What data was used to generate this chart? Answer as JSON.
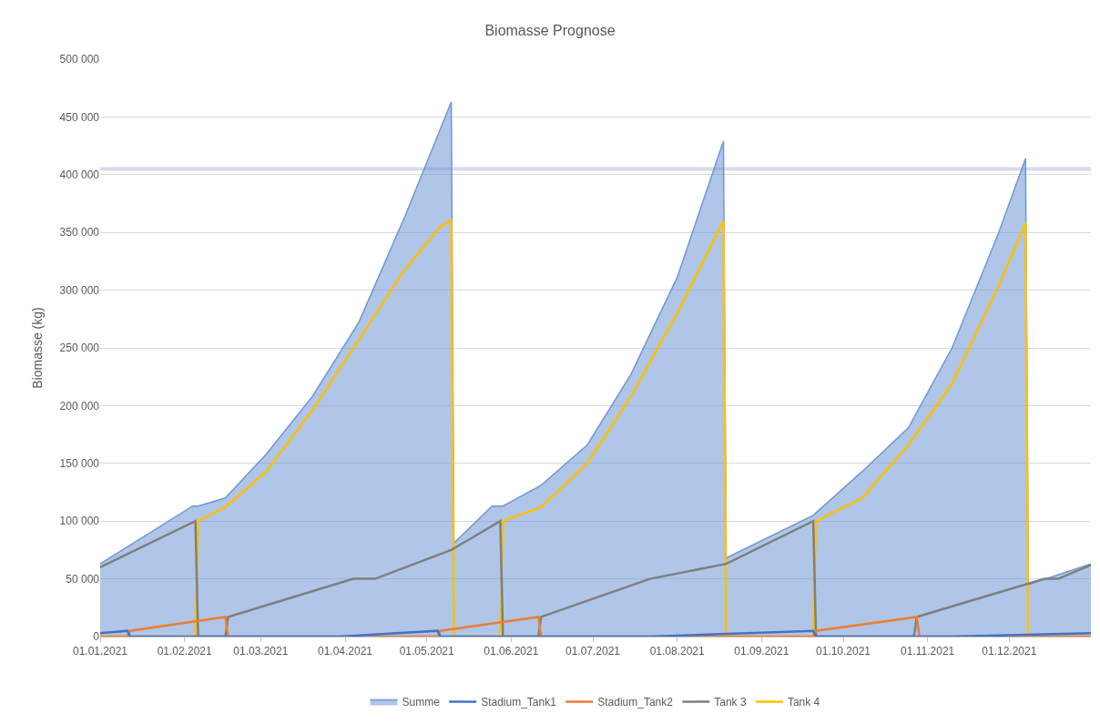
{
  "chart_data": {
    "type": "line",
    "title": "Biomasse Prognose",
    "ylabel": "Biomasse (kg)",
    "xlim": [
      "2021-01-01",
      "2021-12-31"
    ],
    "xticks": [
      {
        "value": "2021-01-01",
        "label": "01.01.2021"
      },
      {
        "value": "2021-02-01",
        "label": "01.02.2021"
      },
      {
        "value": "2021-03-01",
        "label": "01.03.2021"
      },
      {
        "value": "2021-04-01",
        "label": "01.04.2021"
      },
      {
        "value": "2021-05-01",
        "label": "01.05.2021"
      },
      {
        "value": "2021-06-01",
        "label": "01.06.2021"
      },
      {
        "value": "2021-07-01",
        "label": "01.07.2021"
      },
      {
        "value": "2021-08-01",
        "label": "01.08.2021"
      },
      {
        "value": "2021-09-01",
        "label": "01.09.2021"
      },
      {
        "value": "2021-10-01",
        "label": "01.10.2021"
      },
      {
        "value": "2021-11-01",
        "label": "01.11.2021"
      },
      {
        "value": "2021-12-01",
        "label": "01.12.2021"
      }
    ],
    "ylim": [
      0,
      500000
    ],
    "yticks": [
      {
        "value": 0,
        "label": "0"
      },
      {
        "value": 50000,
        "label": "50 000"
      },
      {
        "value": 100000,
        "label": "100 000"
      },
      {
        "value": 150000,
        "label": "150 000"
      },
      {
        "value": 200000,
        "label": "200 000"
      },
      {
        "value": 250000,
        "label": "250 000"
      },
      {
        "value": 300000,
        "label": "300 000"
      },
      {
        "value": 350000,
        "label": "350 000"
      },
      {
        "value": 400000,
        "label": "400 000"
      },
      {
        "value": 450000,
        "label": "450 000"
      },
      {
        "value": 500000,
        "label": "500 000"
      }
    ],
    "grid": "y",
    "legend": "bottom",
    "marker": "none",
    "line_style": "solid",
    "ref_lines": [
      {
        "axis": "y",
        "value": 405000,
        "color": "#d6dcea"
      }
    ],
    "series": [
      {
        "name": "Summe",
        "type": "area",
        "color": "#6f97d6",
        "x": [
          "2021-01-01",
          "2021-02-04",
          "2021-02-06",
          "2021-02-16",
          "2021-03-03",
          "2021-03-20",
          "2021-04-06",
          "2021-04-23",
          "2021-05-10",
          "2021-05-11",
          "2021-05-25",
          "2021-05-29",
          "2021-06-12",
          "2021-06-29",
          "2021-07-15",
          "2021-08-01",
          "2021-08-18",
          "2021-08-19",
          "2021-09-20",
          "2021-10-08",
          "2021-10-25",
          "2021-11-10",
          "2021-11-27",
          "2021-12-07",
          "2021-12-08",
          "2021-12-31"
        ],
        "values": [
          63000,
          113000,
          113000,
          120000,
          158000,
          208000,
          272000,
          364000,
          463000,
          81000,
          113000,
          113000,
          131000,
          166000,
          227000,
          311000,
          429000,
          68000,
          105000,
          143000,
          181000,
          250000,
          349000,
          414000,
          45000,
          63000
        ]
      },
      {
        "name": "Stadium_Tank1",
        "color": "#4472c4",
        "x": [
          "2021-01-01",
          "2021-01-11",
          "2021-01-12",
          "2021-03-30",
          "2021-05-05",
          "2021-05-06",
          "2021-07-22",
          "2021-09-20",
          "2021-09-21",
          "2021-11-10",
          "2021-12-31"
        ],
        "values": [
          3000,
          5000,
          0,
          0,
          5000,
          0,
          0,
          5000,
          0,
          0,
          3000
        ]
      },
      {
        "name": "Stadium_Tank2",
        "color": "#ed7d31",
        "x": [
          "2021-01-01",
          "2021-01-11",
          "2021-01-12",
          "2021-02-16",
          "2021-02-17",
          "2021-05-05",
          "2021-05-06",
          "2021-06-11",
          "2021-06-12",
          "2021-09-20",
          "2021-09-21",
          "2021-10-28",
          "2021-10-29",
          "2021-12-31"
        ],
        "values": [
          0,
          0,
          5000,
          17000,
          0,
          0,
          5000,
          17000,
          0,
          0,
          5000,
          17000,
          0,
          0
        ]
      },
      {
        "name": "Tank 3",
        "color": "#7f7f7f",
        "x": [
          "2021-01-01",
          "2021-02-05",
          "2021-02-06",
          "2021-02-16",
          "2021-02-17",
          "2021-04-04",
          "2021-04-12",
          "2021-05-10",
          "2021-05-28",
          "2021-05-29",
          "2021-06-11",
          "2021-06-12",
          "2021-07-22",
          "2021-08-19",
          "2021-09-20",
          "2021-09-21",
          "2021-10-27",
          "2021-10-28",
          "2021-12-14",
          "2021-12-19",
          "2021-12-31"
        ],
        "values": [
          60000,
          100000,
          0,
          0,
          17000,
          50000,
          50000,
          75000,
          100000,
          0,
          0,
          17000,
          50000,
          63000,
          100000,
          0,
          0,
          17000,
          50000,
          50000,
          62000
        ]
      },
      {
        "name": "Tank 4",
        "color": "#ffc000",
        "x": [
          "2021-01-01",
          "2021-02-05",
          "2021-02-06",
          "2021-02-16",
          "2021-03-03",
          "2021-03-20",
          "2021-04-06",
          "2021-04-23",
          "2021-05-06",
          "2021-05-10",
          "2021-05-11",
          "2021-05-28",
          "2021-05-29",
          "2021-06-12",
          "2021-06-29",
          "2021-07-15",
          "2021-08-01",
          "2021-08-18",
          "2021-08-19",
          "2021-09-20",
          "2021-09-21",
          "2021-10-08",
          "2021-10-25",
          "2021-11-10",
          "2021-11-27",
          "2021-12-07",
          "2021-12-08",
          "2021-12-31"
        ],
        "values": [
          0,
          0,
          100000,
          112000,
          143000,
          196000,
          257000,
          318000,
          355000,
          360000,
          0,
          0,
          100000,
          112000,
          150000,
          208000,
          280000,
          360000,
          0,
          0,
          100000,
          120000,
          166000,
          219000,
          303000,
          358000,
          0,
          0
        ]
      }
    ]
  }
}
